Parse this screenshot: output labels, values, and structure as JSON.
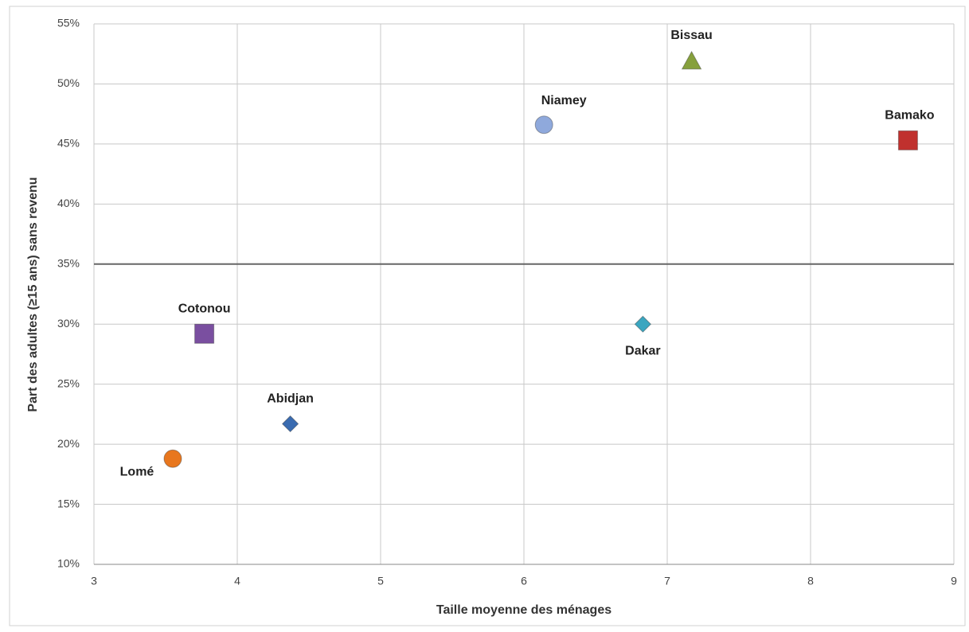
{
  "chart_data": {
    "type": "scatter",
    "x_label": "Taille moyenne des ménages",
    "y_label": "Part des adultes (≥15 ans) sans revenu",
    "xlim": [
      3,
      9
    ],
    "xticks": [
      3,
      4,
      5,
      6,
      7,
      8,
      9
    ],
    "ylim": [
      10,
      55
    ],
    "yticks": [
      {
        "value": 10,
        "label": "10%"
      },
      {
        "value": 15,
        "label": "15%"
      },
      {
        "value": 20,
        "label": "20%"
      },
      {
        "value": 25,
        "label": "25%"
      },
      {
        "value": 30,
        "label": "30%"
      },
      {
        "value": 35,
        "label": "35%"
      },
      {
        "value": 40,
        "label": "40%"
      },
      {
        "value": 45,
        "label": "45%"
      },
      {
        "value": 50,
        "label": "50%"
      },
      {
        "value": 55,
        "label": "55%"
      }
    ],
    "grid": true,
    "reference_y": 35,
    "points": [
      {
        "label": "Lomé",
        "x": 3.55,
        "y": 18.8,
        "color": "#e8771e",
        "marker": "circle"
      },
      {
        "label": "Cotonou",
        "x": 3.77,
        "y": 29.2,
        "color": "#7a4fa0",
        "marker": "square"
      },
      {
        "label": "Abidjan",
        "x": 4.37,
        "y": 21.7,
        "color": "#3a6bb0",
        "marker": "diamond"
      },
      {
        "label": "Niamey",
        "x": 6.14,
        "y": 46.6,
        "color": "#8fa9dc",
        "marker": "circle"
      },
      {
        "label": "Dakar",
        "x": 6.83,
        "y": 30.0,
        "color": "#3aa6c0",
        "marker": "diamond"
      },
      {
        "label": "Bissau",
        "x": 7.17,
        "y": 51.9,
        "color": "#86a03c",
        "marker": "triangle"
      },
      {
        "label": "Bamako",
        "x": 8.68,
        "y": 45.3,
        "color": "#c0312e",
        "marker": "square"
      }
    ]
  }
}
